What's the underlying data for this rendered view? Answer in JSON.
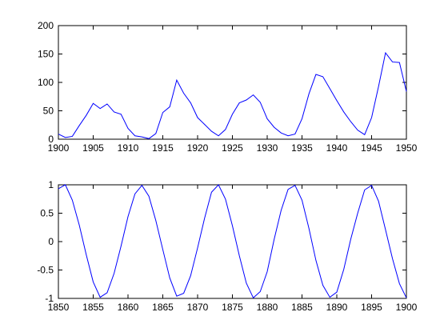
{
  "chart_data": [
    {
      "type": "line",
      "title": "",
      "xlabel": "",
      "ylabel": "",
      "xlim": [
        1900,
        1950
      ],
      "ylim": [
        0,
        200
      ],
      "grid": false,
      "x_ticks": [
        1900,
        1905,
        1910,
        1915,
        1920,
        1925,
        1930,
        1935,
        1940,
        1945,
        1950
      ],
      "y_ticks": [
        0,
        50,
        100,
        150,
        200
      ],
      "x_tick_labels": [
        "1900",
        "1905",
        "1910",
        "1915",
        "1920",
        "1925",
        "1930",
        "1935",
        "1940",
        "1945",
        "1950"
      ],
      "y_tick_labels": [
        "0",
        "50",
        "100",
        "150",
        "200"
      ],
      "series": [
        {
          "color": "#0000ff",
          "x": [
            1900,
            1901,
            1902,
            1903,
            1904,
            1905,
            1906,
            1907,
            1908,
            1909,
            1910,
            1911,
            1912,
            1913,
            1914,
            1915,
            1916,
            1917,
            1918,
            1919,
            1920,
            1921,
            1922,
            1923,
            1924,
            1925,
            1926,
            1927,
            1928,
            1929,
            1930,
            1931,
            1932,
            1933,
            1934,
            1935,
            1936,
            1937,
            1938,
            1939,
            1940,
            1941,
            1942,
            1943,
            1944,
            1945,
            1946,
            1947,
            1948,
            1949,
            1950
          ],
          "y": [
            9,
            3,
            5,
            24,
            42,
            63,
            54,
            62,
            48,
            44,
            19,
            6,
            4,
            1,
            10,
            47,
            57,
            104,
            81,
            64,
            38,
            26,
            14,
            6,
            17,
            44,
            64,
            69,
            78,
            65,
            36,
            21,
            11,
            6,
            9,
            36,
            80,
            114,
            110,
            89,
            68,
            48,
            31,
            16,
            8,
            38,
            93,
            152,
            136,
            135,
            84
          ]
        }
      ]
    },
    {
      "type": "line",
      "title": "",
      "xlabel": "",
      "ylabel": "",
      "xlim": [
        1850,
        1900
      ],
      "ylim": [
        -1,
        1
      ],
      "grid": false,
      "x_ticks": [
        1850,
        1855,
        1860,
        1865,
        1870,
        1875,
        1880,
        1885,
        1890,
        1895,
        1900
      ],
      "y_ticks": [
        -1,
        -0.5,
        0,
        0.5,
        1
      ],
      "x_tick_labels": [
        "1850",
        "1855",
        "1860",
        "1865",
        "1870",
        "1875",
        "1880",
        "1885",
        "1890",
        "1895",
        "1900"
      ],
      "y_tick_labels": [
        "-1",
        "-0.5",
        "0",
        "0.5",
        "1"
      ],
      "series": [
        {
          "color": "#0000ff",
          "x": [
            1850,
            1851,
            1852,
            1853,
            1854,
            1855,
            1856,
            1857,
            1858,
            1859,
            1860,
            1861,
            1862,
            1863,
            1864,
            1865,
            1866,
            1867,
            1868,
            1869,
            1870,
            1871,
            1872,
            1873,
            1874,
            1875,
            1876,
            1877,
            1878,
            1879,
            1880,
            1881,
            1882,
            1883,
            1884,
            1885,
            1886,
            1887,
            1888,
            1889,
            1890,
            1891,
            1892,
            1893,
            1894,
            1895,
            1896,
            1897,
            1898,
            1899,
            1900
          ],
          "y": [
            0.93,
            1.0,
            0.73,
            0.29,
            -0.23,
            -0.71,
            -0.98,
            -0.9,
            -0.56,
            -0.08,
            0.44,
            0.84,
            0.99,
            0.8,
            0.37,
            -0.14,
            -0.64,
            -0.96,
            -0.91,
            -0.6,
            -0.11,
            0.41,
            0.87,
            1.0,
            0.75,
            0.28,
            -0.25,
            -0.73,
            -0.99,
            -0.88,
            -0.53,
            0.04,
            0.55,
            0.92,
            0.99,
            0.73,
            0.23,
            -0.33,
            -0.77,
            -0.98,
            -0.89,
            -0.49,
            0.04,
            0.5,
            0.91,
            0.99,
            0.71,
            0.21,
            -0.3,
            -0.74,
            -0.99
          ]
        }
      ]
    }
  ]
}
